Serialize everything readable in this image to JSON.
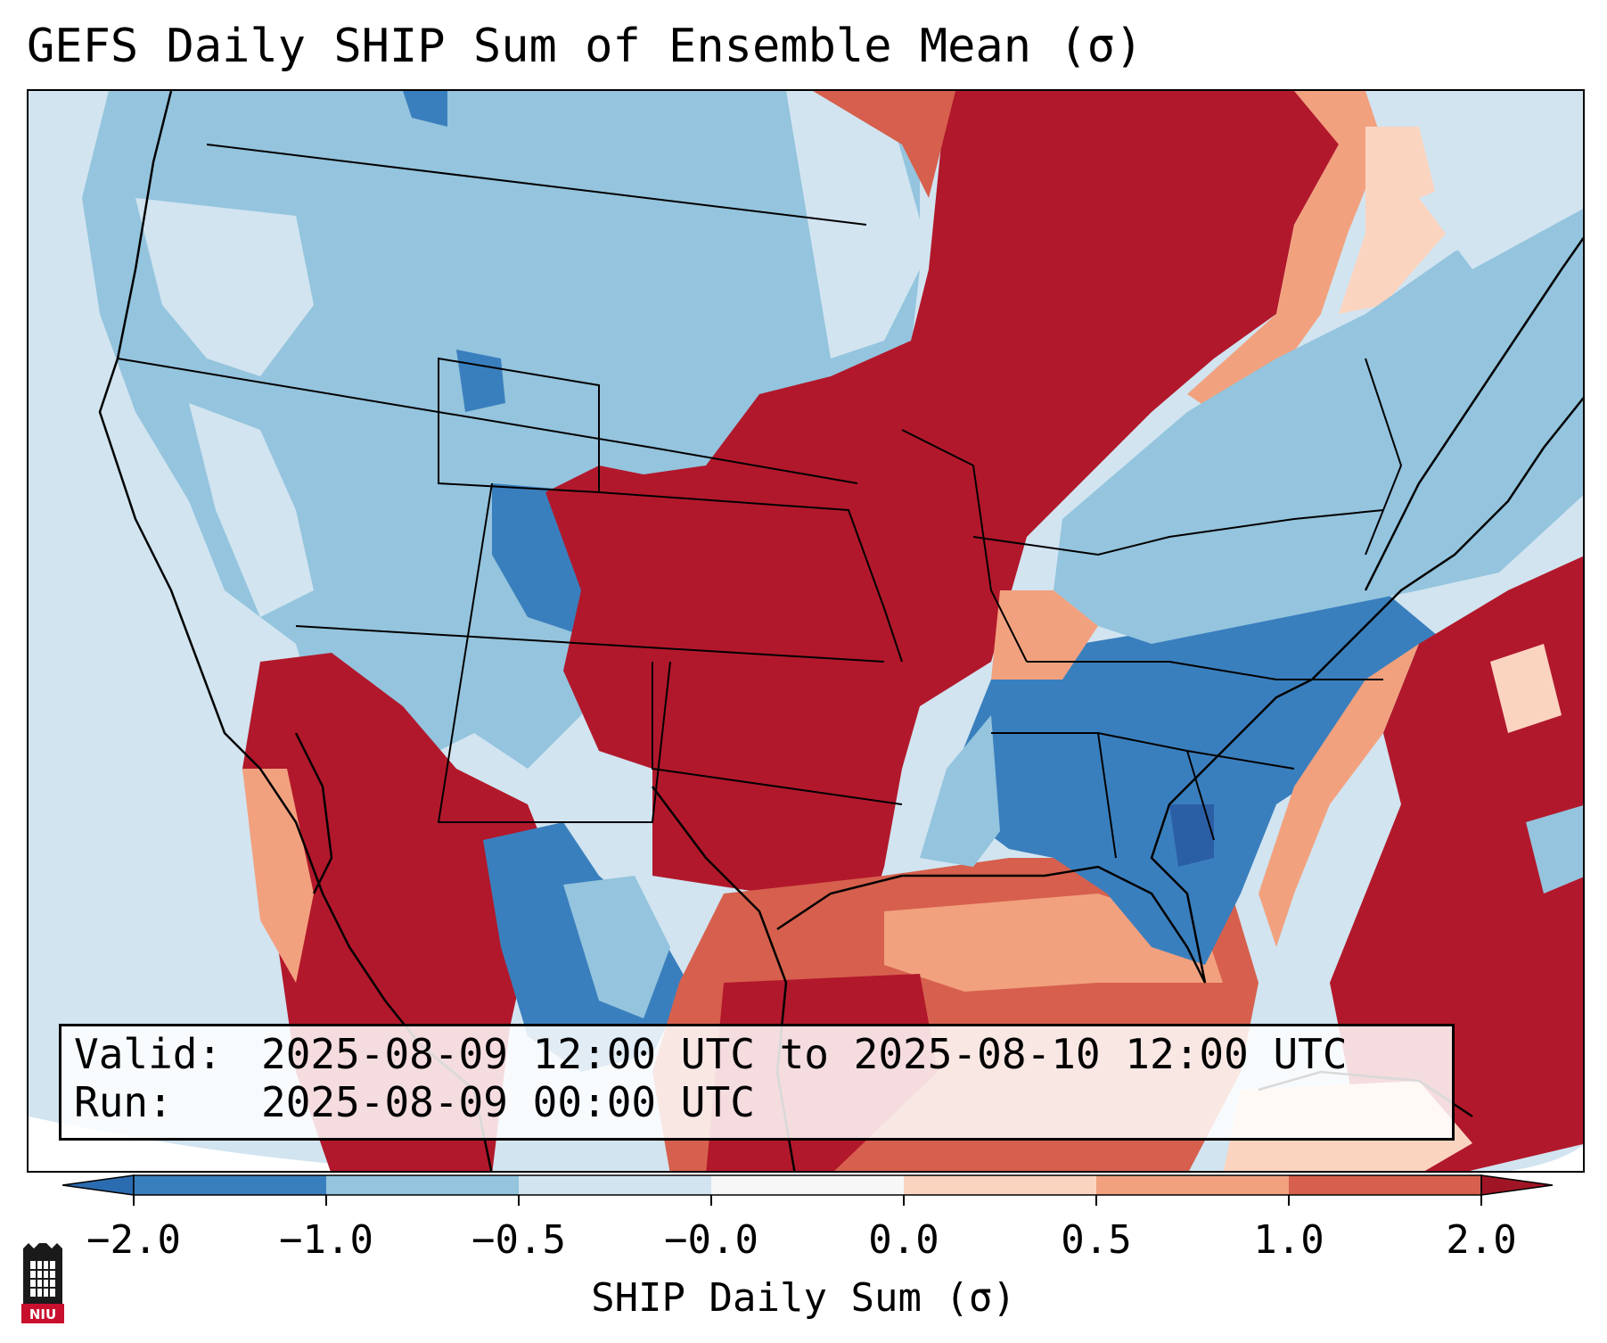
{
  "title": "GEFS Daily SHIP Sum of Ensemble Mean (σ)",
  "info": {
    "valid_label": "Valid:",
    "valid_value": "2025-08-09 12:00 UTC to 2025-08-10 12:00 UTC",
    "run_label": "Run:",
    "run_value": "2025-08-09 00:00 UTC"
  },
  "colorbar": {
    "label": "SHIP Daily Sum (σ)",
    "ticks": [
      "−2.0",
      "−1.0",
      "−0.5",
      "−0.0",
      "0.0",
      "0.5",
      "1.0",
      "2.0"
    ],
    "bins": [
      "#3a7fbd",
      "#94c4de",
      "#d1e4f0",
      "#f7f7f7",
      "#fbd4c0",
      "#f2a17f",
      "#d6604d",
      "#b2182b"
    ],
    "under_color": "#2b6cb0",
    "over_color": "#a01525"
  },
  "logo": {
    "text": "NIU",
    "icon": "niu-logo-icon"
  },
  "map": {
    "background_ocean": "#d1e4f0",
    "region_values": {
      "pacific_ocean": -0.4,
      "pacific_northwest": -0.6,
      "northern_rockies": -0.8,
      "northern_plains": -0.8,
      "central_rockies": -0.9,
      "four_corners": -0.9,
      "southern_plains_texas": 2.4,
      "kansas_nebraska_corridor": 2.4,
      "upper_midwest_great_lakes": 2.4,
      "ontario_quebec": 2.4,
      "desert_southwest_mexico": 2.4,
      "gulf_of_mexico": 1.5,
      "southeast": -1.2,
      "northeast": -0.8,
      "western_atlantic": 2.2,
      "florida": -1.3,
      "caribbean": 0.8
    }
  }
}
